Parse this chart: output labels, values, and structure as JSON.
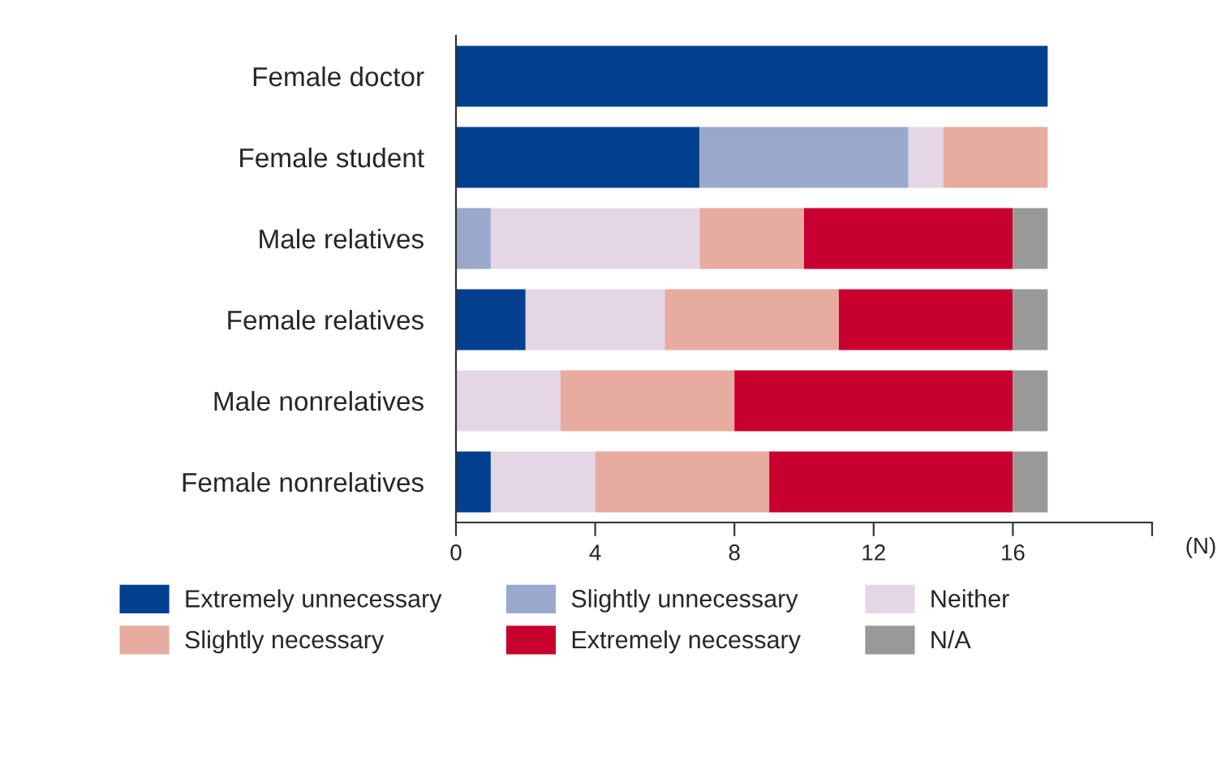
{
  "chart_data": {
    "type": "bar",
    "orientation": "horizontal",
    "stacked": true,
    "categories": [
      "Female doctor",
      "Female student",
      "Male relatives",
      "Female relatives",
      "Male nonrelatives",
      "Female nonrelatives"
    ],
    "series": [
      {
        "name": "Extremely unnecessary",
        "color": "#00408f",
        "values": [
          17,
          7,
          0,
          2,
          0,
          1
        ]
      },
      {
        "name": "Slightly unnecessary",
        "color": "#9aa8cc",
        "values": [
          0,
          6,
          1,
          0,
          0,
          0
        ]
      },
      {
        "name": "Neither",
        "color": "#e5d6e6",
        "values": [
          0,
          1,
          6,
          4,
          3,
          3
        ]
      },
      {
        "name": "Slightly necessary",
        "color": "#e8aba0",
        "values": [
          0,
          3,
          3,
          5,
          5,
          5
        ]
      },
      {
        "name": "Extremely necessary",
        "color": "#c8002f",
        "values": [
          0,
          0,
          6,
          5,
          8,
          7
        ]
      },
      {
        "name": "N/A",
        "color": "#999999",
        "values": [
          0,
          0,
          1,
          1,
          1,
          1
        ]
      }
    ],
    "xlabel": "(N)",
    "xlim": [
      0,
      20
    ],
    "xticks": [
      0,
      4,
      8,
      12,
      16,
      {
        "value": 20,
        "label": null
      }
    ],
    "grid": false,
    "legend": "bottom"
  }
}
